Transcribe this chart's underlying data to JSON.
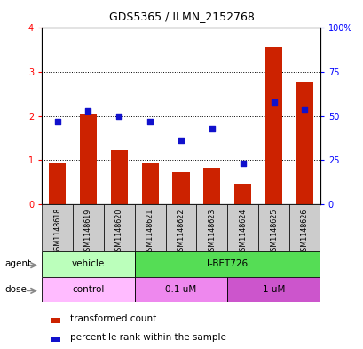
{
  "title": "GDS5365 / ILMN_2152768",
  "samples": [
    "GSM1148618",
    "GSM1148619",
    "GSM1148620",
    "GSM1148621",
    "GSM1148622",
    "GSM1148623",
    "GSM1148624",
    "GSM1148625",
    "GSM1148626"
  ],
  "transformed_count": [
    0.95,
    2.05,
    1.22,
    0.93,
    0.72,
    0.83,
    0.47,
    3.57,
    2.78
  ],
  "percentile_rank": [
    47,
    53,
    50,
    47,
    36,
    43,
    23,
    58,
    54
  ],
  "ylim_left": [
    0,
    4
  ],
  "ylim_right": [
    0,
    100
  ],
  "yticks_left": [
    0,
    1,
    2,
    3,
    4
  ],
  "yticks_right": [
    0,
    25,
    50,
    75,
    100
  ],
  "yticklabels_right": [
    "0",
    "25",
    "50",
    "75",
    "100%"
  ],
  "bar_color": "#cc2200",
  "dot_color": "#1111cc",
  "agent_groups": [
    {
      "label": "vehicle",
      "start": 0,
      "end": 3,
      "color": "#bbffbb"
    },
    {
      "label": "I-BET726",
      "start": 3,
      "end": 9,
      "color": "#55dd55"
    }
  ],
  "dose_groups": [
    {
      "label": "control",
      "start": 0,
      "end": 3,
      "color": "#ffbbff"
    },
    {
      "label": "0.1 uM",
      "start": 3,
      "end": 6,
      "color": "#ee88ee"
    },
    {
      "label": "1 uM",
      "start": 6,
      "end": 9,
      "color": "#cc55cc"
    }
  ],
  "legend_red_label": "transformed count",
  "legend_blue_label": "percentile rank within the sample",
  "agent_label": "agent",
  "dose_label": "dose",
  "bar_width": 0.55,
  "sample_bg_color": "#cccccc",
  "fig_bg": "#ffffff"
}
